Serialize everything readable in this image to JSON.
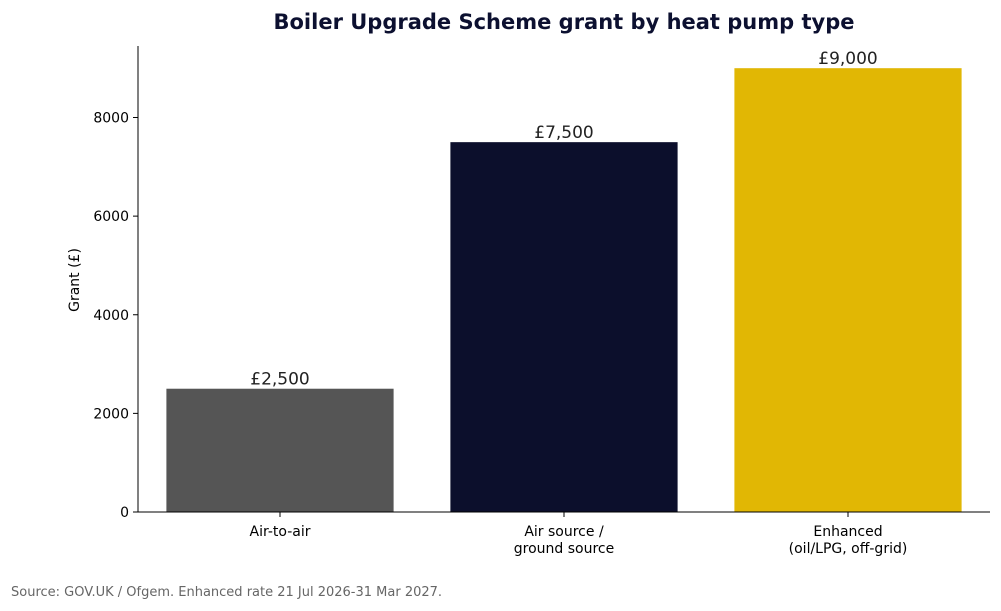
{
  "chart_data": {
    "type": "bar",
    "title": "Boiler Upgrade Scheme grant by heat pump type",
    "xlabel": "",
    "ylabel": "Grant (£)",
    "categories": [
      [
        "Air-to-air"
      ],
      [
        "Air source /",
        "ground source"
      ],
      [
        "Enhanced",
        "(oil/LPG, off-grid)"
      ]
    ],
    "values": [
      2500,
      7500,
      9000
    ],
    "value_labels": [
      "£2,500",
      "£7,500",
      "£9,000"
    ],
    "colors": [
      "#555555",
      "#0c0f2c",
      "#e1b704"
    ],
    "ylim": [
      0,
      9450
    ],
    "yticks": [
      0,
      2000,
      4000,
      6000,
      8000
    ],
    "grid": false
  },
  "source_note": "Source: GOV.UK / Ofgem. Enhanced rate 21 Jul 2026-31 Mar 2027."
}
